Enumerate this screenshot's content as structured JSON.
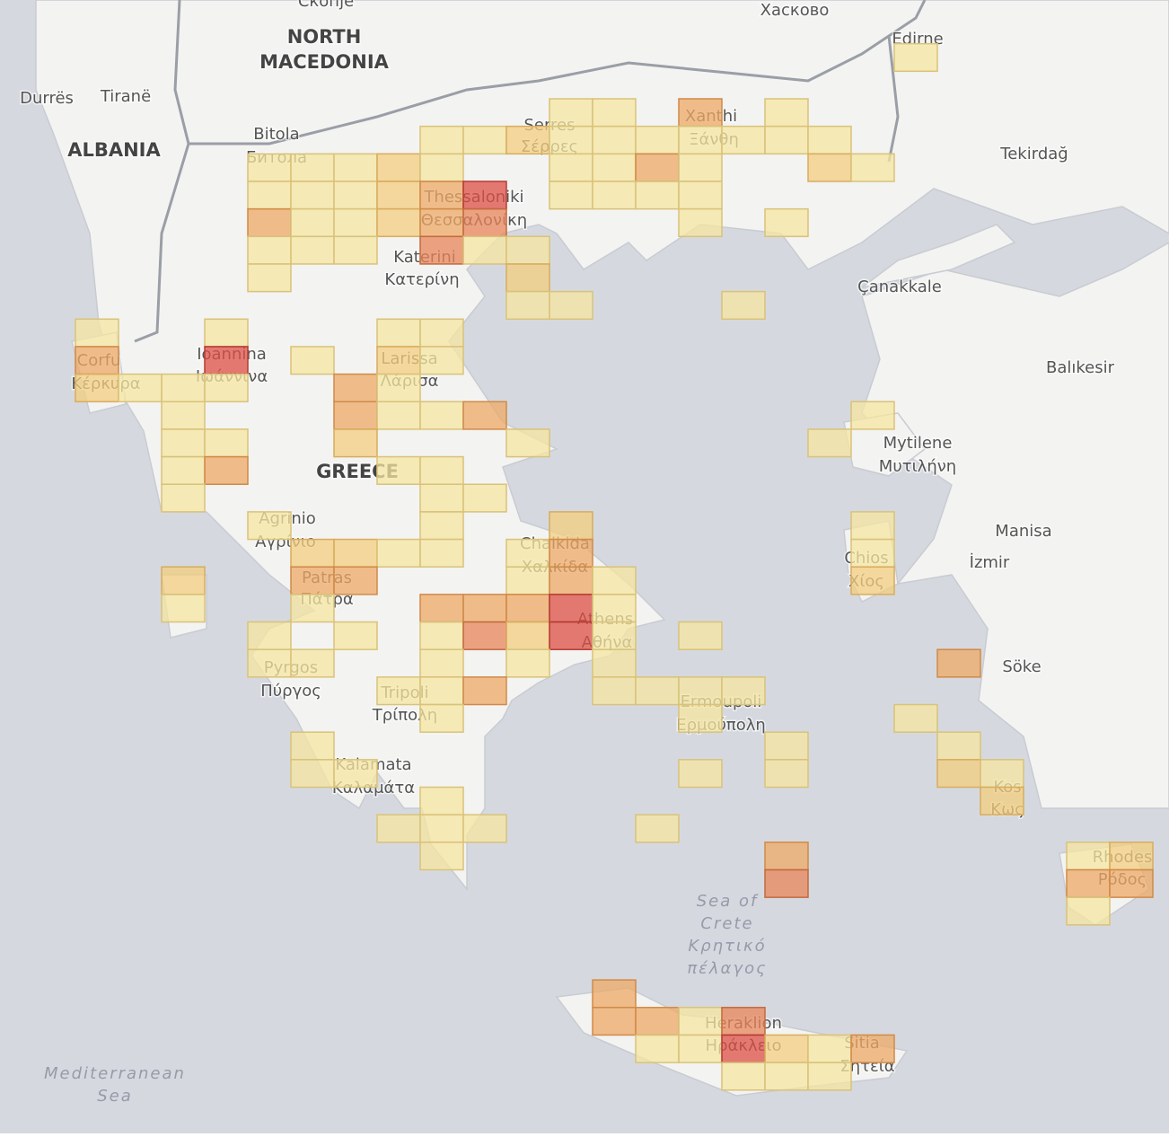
{
  "labels": [
    "Скопје",
    "Хасково",
    "NORTH",
    "MACEDONIA",
    "Durrës",
    "Tiranë",
    "ALBANIA",
    "Bitola",
    "Битола",
    "Edirne",
    "Serres",
    "Σέρρες",
    "Xanthi",
    "Ξάνθη",
    "Tekirdağ",
    "Thessaloniki",
    "Θεσσαλονίκη",
    "Katerini",
    "Κατερίνη",
    "Çanakkale",
    "Corfu",
    "Κέρκυρα",
    "Ioannina",
    "Ιωάννινα",
    "Larissa",
    "Λάρισα",
    "Balıkesir",
    "Mytilene",
    "Μυτιλήνη",
    "GREECE",
    "Agrinio",
    "Αγρίνιο",
    "Chalkida",
    "Χαλκίδα",
    "Manisa",
    "Chios",
    "Χίος",
    "İzmir",
    "Patras",
    "Πάτρα",
    "Athens",
    "Αθήνα",
    "Söke",
    "Pyrgos",
    "Πύργος",
    "Tripoli",
    "Τρίπολη",
    "Ermoupoli",
    "Ερμούπολη",
    "Kalamata",
    "Καλαμάτα",
    "Kos",
    "Κως",
    "Rhodes",
    "Ρόδος",
    "Sea of",
    "Crete",
    "Κρητικό",
    "πέλαγος",
    "Heraklion",
    "Ηράκλειο",
    "Sitia",
    "Σητεία",
    "Mediterranean",
    "Sea"
  ],
  "cells": [
    [
      19,
      -2,
      1
    ],
    [
      11,
      0,
      1
    ],
    [
      12,
      0,
      1
    ],
    [
      14,
      0,
      3
    ],
    [
      16,
      0,
      1
    ],
    [
      8,
      1,
      1
    ],
    [
      9,
      1,
      1
    ],
    [
      10,
      1,
      2
    ],
    [
      11,
      1,
      1
    ],
    [
      12,
      1,
      1
    ],
    [
      13,
      1,
      1
    ],
    [
      14,
      1,
      1
    ],
    [
      15,
      1,
      1
    ],
    [
      16,
      1,
      1
    ],
    [
      17,
      1,
      1
    ],
    [
      4,
      2,
      1
    ],
    [
      5,
      2,
      1
    ],
    [
      6,
      2,
      1
    ],
    [
      7,
      2,
      2
    ],
    [
      8,
      2,
      1
    ],
    [
      11,
      2,
      1
    ],
    [
      12,
      2,
      1
    ],
    [
      13,
      2,
      3
    ],
    [
      14,
      2,
      1
    ],
    [
      17,
      2,
      2
    ],
    [
      18,
      2,
      1
    ],
    [
      4,
      3,
      1
    ],
    [
      5,
      3,
      1
    ],
    [
      6,
      3,
      1
    ],
    [
      7,
      3,
      2
    ],
    [
      8,
      3,
      3
    ],
    [
      9,
      3,
      5
    ],
    [
      11,
      3,
      1
    ],
    [
      12,
      3,
      1
    ],
    [
      13,
      3,
      1
    ],
    [
      14,
      3,
      1
    ],
    [
      4,
      4,
      3
    ],
    [
      5,
      4,
      1
    ],
    [
      6,
      4,
      1
    ],
    [
      7,
      4,
      2
    ],
    [
      8,
      4,
      3
    ],
    [
      9,
      4,
      4
    ],
    [
      14,
      4,
      1
    ],
    [
      16,
      4,
      1
    ],
    [
      4,
      5,
      1
    ],
    [
      5,
      5,
      1
    ],
    [
      6,
      5,
      1
    ],
    [
      8,
      5,
      4
    ],
    [
      9,
      5,
      1
    ],
    [
      10,
      5,
      1
    ],
    [
      4,
      6,
      1
    ],
    [
      10,
      6,
      2
    ],
    [
      10,
      7,
      1
    ],
    [
      11,
      7,
      1
    ],
    [
      15,
      7,
      1
    ],
    [
      0,
      8,
      1
    ],
    [
      3,
      8,
      1
    ],
    [
      7,
      8,
      1
    ],
    [
      8,
      8,
      1
    ],
    [
      0,
      9,
      3
    ],
    [
      3,
      9,
      5
    ],
    [
      5,
      9,
      1
    ],
    [
      7,
      9,
      2
    ],
    [
      8,
      9,
      1
    ],
    [
      0,
      10,
      2
    ],
    [
      1,
      10,
      1
    ],
    [
      2,
      10,
      1
    ],
    [
      3,
      10,
      1
    ],
    [
      6,
      10,
      3
    ],
    [
      7,
      10,
      1
    ],
    [
      2,
      11,
      1
    ],
    [
      6,
      11,
      3
    ],
    [
      7,
      11,
      1
    ],
    [
      8,
      11,
      1
    ],
    [
      9,
      11,
      3
    ],
    [
      18,
      11,
      1
    ],
    [
      2,
      12,
      1
    ],
    [
      3,
      12,
      1
    ],
    [
      6,
      12,
      2
    ],
    [
      10,
      12,
      1
    ],
    [
      17,
      12,
      1
    ],
    [
      2,
      13,
      1
    ],
    [
      3,
      13,
      3
    ],
    [
      7,
      13,
      1
    ],
    [
      8,
      13,
      1
    ],
    [
      2,
      14,
      1
    ],
    [
      8,
      14,
      1
    ],
    [
      9,
      14,
      1
    ],
    [
      4,
      15,
      1
    ],
    [
      8,
      15,
      1
    ],
    [
      11,
      15,
      2
    ],
    [
      18,
      15,
      1
    ],
    [
      5,
      16,
      2
    ],
    [
      6,
      16,
      2
    ],
    [
      7,
      16,
      1
    ],
    [
      8,
      16,
      1
    ],
    [
      10,
      16,
      1
    ],
    [
      11,
      16,
      3
    ],
    [
      18,
      16,
      1
    ],
    [
      2,
      17,
      2
    ],
    [
      5,
      17,
      3
    ],
    [
      6,
      17,
      3
    ],
    [
      10,
      17,
      1
    ],
    [
      11,
      17,
      3
    ],
    [
      12,
      17,
      1
    ],
    [
      18,
      17,
      2
    ],
    [
      2,
      18,
      1
    ],
    [
      5,
      18,
      1
    ],
    [
      8,
      18,
      3
    ],
    [
      9,
      18,
      3
    ],
    [
      10,
      18,
      3
    ],
    [
      11,
      18,
      5
    ],
    [
      12,
      18,
      1
    ],
    [
      4,
      19,
      1
    ],
    [
      6,
      19,
      1
    ],
    [
      8,
      19,
      1
    ],
    [
      9,
      19,
      4
    ],
    [
      10,
      19,
      2
    ],
    [
      11,
      19,
      5
    ],
    [
      12,
      19,
      1
    ],
    [
      14,
      19,
      1
    ],
    [
      4,
      20,
      1
    ],
    [
      5,
      20,
      1
    ],
    [
      8,
      20,
      1
    ],
    [
      10,
      20,
      1
    ],
    [
      12,
      20,
      1
    ],
    [
      20,
      20,
      3
    ],
    [
      7,
      21,
      1
    ],
    [
      8,
      21,
      1
    ],
    [
      9,
      21,
      3
    ],
    [
      12,
      21,
      1
    ],
    [
      13,
      21,
      1
    ],
    [
      14,
      21,
      1
    ],
    [
      15,
      21,
      1
    ],
    [
      8,
      22,
      1
    ],
    [
      14,
      22,
      1
    ],
    [
      19,
      22,
      1
    ],
    [
      5,
      23,
      1
    ],
    [
      16,
      23,
      1
    ],
    [
      20,
      23,
      1
    ],
    [
      5,
      24,
      1
    ],
    [
      6,
      24,
      1
    ],
    [
      14,
      24,
      1
    ],
    [
      16,
      24,
      1
    ],
    [
      20,
      24,
      2
    ],
    [
      21,
      24,
      1
    ],
    [
      8,
      25,
      1
    ],
    [
      21,
      25,
      2
    ],
    [
      7,
      26,
      1
    ],
    [
      8,
      26,
      1
    ],
    [
      9,
      26,
      1
    ],
    [
      13,
      26,
      1
    ],
    [
      8,
      27,
      1
    ],
    [
      16,
      27,
      3
    ],
    [
      23,
      27,
      1
    ],
    [
      24,
      27,
      2
    ],
    [
      16,
      28,
      4
    ],
    [
      23,
      28,
      3
    ],
    [
      24,
      28,
      3
    ],
    [
      23,
      29,
      1
    ],
    [
      12,
      32,
      3
    ],
    [
      12,
      33,
      3
    ],
    [
      13,
      33,
      3
    ],
    [
      14,
      33,
      1
    ],
    [
      15,
      33,
      4
    ],
    [
      13,
      34,
      1
    ],
    [
      14,
      34,
      1
    ],
    [
      15,
      34,
      5
    ],
    [
      16,
      34,
      2
    ],
    [
      17,
      34,
      1
    ],
    [
      18,
      34,
      3
    ],
    [
      15,
      35,
      1
    ],
    [
      16,
      35,
      1
    ],
    [
      17,
      35,
      1
    ]
  ]
}
